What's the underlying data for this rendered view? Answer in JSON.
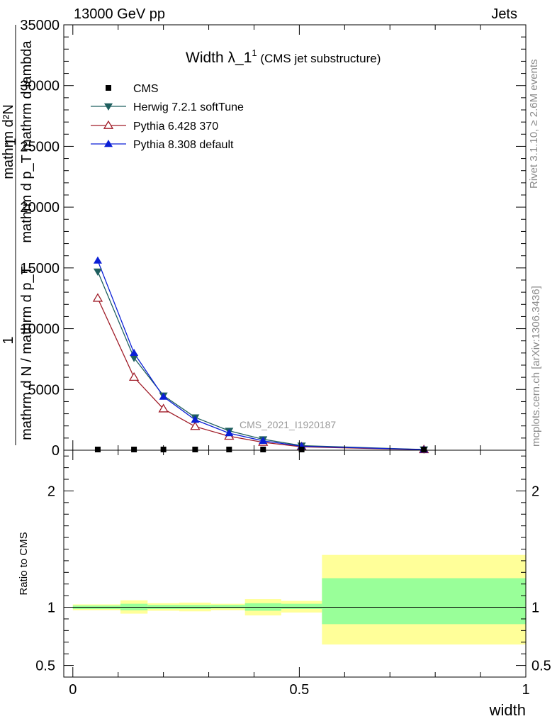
{
  "header": {
    "left": "13000 GeV pp",
    "right": "Jets"
  },
  "side": {
    "rivet": "Rivet 3.1.10, ≥ 2.6M events",
    "mcplots": "mcplots.cern.ch [arXiv:1306.3436]"
  },
  "title": {
    "main": "Width λ_1",
    "sup": "1",
    "sub": "(CMS jet substructure)"
  },
  "watermark": "CMS_2021_I1920187",
  "legend": [
    "CMS",
    "Herwig 7.2.1 softTune",
    "Pythia 6.428 370",
    "Pythia 8.308 default"
  ],
  "ylabel_top": {
    "numerator": "mathrm d²N",
    "denominator": "mathrm d p_T mathrm d lambda",
    "prefix_numerator": "1",
    "prefix_denominator": "mathrm d N / mathrm d p_T"
  },
  "ylabel_bottom": "Ratio to CMS",
  "xlabel": "width",
  "colors": {
    "cms": "#000000",
    "herwig": "#1f5f5f",
    "pythia6": "#a01c28",
    "pythia8": "#0a1fd6",
    "band_inner": "#99ff99",
    "band_outer": "#ffff99"
  },
  "chart_data": [
    {
      "type": "line",
      "x": [
        0.055,
        0.135,
        0.2,
        0.27,
        0.345,
        0.42,
        0.505,
        0.775
      ],
      "series": [
        {
          "name": "CMS",
          "values": [
            0,
            0,
            0,
            0,
            0,
            0,
            0,
            0
          ]
        },
        {
          "name": "Herwig 7.2.1 softTune",
          "values": [
            14700,
            7600,
            4500,
            2700,
            1600,
            900,
            380,
            60
          ]
        },
        {
          "name": "Pythia 6.428 370",
          "values": [
            12500,
            6000,
            3400,
            1950,
            1150,
            650,
            280,
            40
          ]
        },
        {
          "name": "Pythia 8.308 default",
          "values": [
            15600,
            8000,
            4400,
            2500,
            1400,
            770,
            330,
            50
          ]
        }
      ],
      "xlim": [
        -0.02,
        1.0
      ],
      "ylim": [
        0,
        35000
      ],
      "yticks": [
        0,
        5000,
        10000,
        15000,
        20000,
        25000,
        30000,
        35000
      ]
    },
    {
      "type": "area",
      "bins": [
        [
          0,
          0.105
        ],
        [
          0.105,
          0.165
        ],
        [
          0.165,
          0.235
        ],
        [
          0.235,
          0.305
        ],
        [
          0.305,
          0.38
        ],
        [
          0.38,
          0.46
        ],
        [
          0.46,
          0.55
        ],
        [
          0.55,
          1.0
        ]
      ],
      "inner_band": [
        [
          0.985,
          1.015
        ],
        [
          0.975,
          1.03
        ],
        [
          0.985,
          1.02
        ],
        [
          0.985,
          1.02
        ],
        [
          0.99,
          1.02
        ],
        [
          0.97,
          1.035
        ],
        [
          0.985,
          1.03
        ],
        [
          0.855,
          1.25
        ]
      ],
      "outer_band": [
        [
          0.975,
          1.025
        ],
        [
          0.945,
          1.06
        ],
        [
          0.97,
          1.035
        ],
        [
          0.965,
          1.04
        ],
        [
          0.975,
          1.03
        ],
        [
          0.93,
          1.07
        ],
        [
          0.955,
          1.055
        ],
        [
          0.68,
          1.45
        ]
      ],
      "reference": 1,
      "xlim": [
        -0.02,
        1.0
      ],
      "ylim": [
        0.4,
        2.35
      ],
      "yticks": [
        0.5,
        1,
        2
      ],
      "yticklabels": [
        "0.5",
        "1",
        "2"
      ],
      "xticks": [
        0,
        0.5,
        1
      ],
      "xticklabels": [
        "0",
        "0.5",
        "1"
      ]
    }
  ]
}
